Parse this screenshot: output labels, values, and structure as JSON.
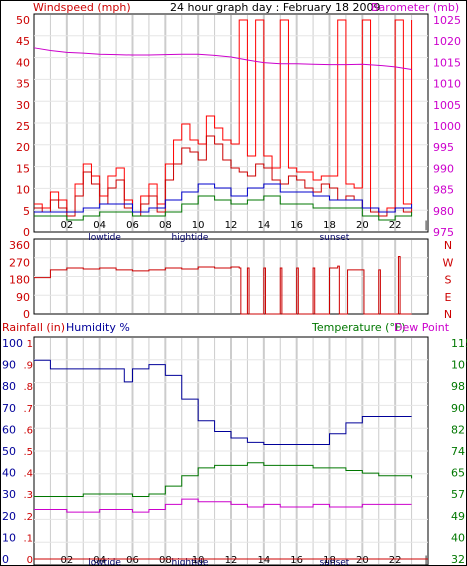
{
  "title": "24 hour graph day : February 18 2009",
  "colors": {
    "wind": "#cc0000",
    "gust": "#ff0000",
    "avg_wind": "#0000cc",
    "barometer": "#cc00cc",
    "direction": "#cc0000",
    "rain": "#cc0000",
    "humidity": "#000099",
    "temperature": "#007700",
    "dewpoint": "#cc00cc",
    "grid": "#cccccc",
    "frame": "#000000"
  },
  "panels": {
    "wind": {
      "left_label": "Windspeed (mph)",
      "right_label": "Barometer (mb)",
      "left_ticks": [
        "50",
        "45",
        "40",
        "35",
        "30",
        "25",
        "20",
        "15",
        "10",
        "5",
        "0"
      ],
      "right_ticks": [
        "1025",
        "1020",
        "1015",
        "1010",
        "1005",
        "1000",
        "995",
        "990",
        "985",
        "980",
        "975"
      ]
    },
    "direction": {
      "left_ticks": [
        "360",
        "270",
        "180",
        "90",
        "0"
      ],
      "right_ticks": [
        "N",
        "W",
        "S",
        "E",
        "N"
      ]
    },
    "temp": {
      "left_label_rain": "Rainfall (in)",
      "left_label_humidity": "Humidity %",
      "right_label_temp": "Temperature (°F)",
      "right_label_dew": "Dew Point",
      "rain_ticks": [
        "1",
        ".9",
        ".8",
        ".7",
        ".6",
        ".5",
        ".4",
        ".3",
        ".2",
        ".1",
        "0"
      ],
      "humidity_ticks": [
        "100",
        "90",
        "80",
        "70",
        "60",
        "50",
        "40",
        "30",
        "20",
        "10",
        "0"
      ],
      "right_ticks": [
        "115",
        "107",
        "98",
        "90",
        "82",
        "74",
        "65",
        "57",
        "49",
        "40",
        "32"
      ]
    }
  },
  "x_axis": {
    "hour_labels": [
      "02",
      "04",
      "06",
      "08",
      "10",
      "12",
      "14",
      "16",
      "18",
      "20",
      "22"
    ],
    "end_label": "|",
    "event_labels": [
      {
        "text": "lowtide",
        "hour": 4.3
      },
      {
        "text": "hightide",
        "hour": 9.5
      },
      {
        "text": "sunset",
        "hour": 18.3
      }
    ]
  },
  "chart_data": [
    {
      "type": "line",
      "title": "24 hour graph day : February 18 2009",
      "xlabel": "",
      "ylabel": "Windspeed (mph)",
      "y2label": "Barometer (mb)",
      "xlim": [
        0,
        24
      ],
      "ylim": [
        0,
        50
      ],
      "y2lim": [
        975,
        1027.5
      ],
      "grid": true,
      "series": [
        {
          "name": "Windspeed (mph)",
          "axis": "left",
          "x": [
            0,
            0.5,
            1,
            1.5,
            2,
            2.5,
            3,
            3.5,
            4,
            4.5,
            5,
            5.5,
            6,
            6.5,
            7,
            7.5,
            8,
            8.5,
            9,
            9.5,
            10,
            10.5,
            11,
            11.5,
            12,
            12.5,
            13,
            13.5,
            14,
            14.5,
            15,
            15.5,
            16,
            16.5,
            17,
            17.5,
            18,
            18.5,
            19,
            19.5,
            20,
            20.5,
            21,
            21.5,
            22,
            22.5,
            23
          ],
          "values": [
            3,
            2,
            5,
            3,
            1,
            6,
            12,
            9,
            4,
            8,
            10,
            3,
            1,
            4,
            6,
            2,
            10,
            14,
            18,
            17,
            15,
            21,
            19,
            15,
            13,
            12,
            11,
            14,
            13,
            10,
            9,
            11,
            10,
            8,
            7,
            9,
            8,
            5,
            6,
            5,
            3,
            2,
            1,
            2,
            3,
            2,
            3
          ]
        },
        {
          "name": "Gust",
          "axis": "left",
          "x": [
            0,
            0.5,
            1,
            1.5,
            2,
            2.5,
            3,
            3.5,
            4,
            4.5,
            5,
            5.5,
            6,
            6.5,
            7,
            7.5,
            8,
            8.5,
            9,
            9.5,
            10,
            10.5,
            11,
            11.5,
            12,
            12.5,
            13,
            13.5,
            14,
            14.5,
            15,
            15.5,
            16,
            16.5,
            17,
            17.5,
            18,
            18.5,
            19,
            19.5,
            20,
            20.5,
            21,
            21.5,
            22,
            22.5,
            23
          ],
          "values": [
            4,
            3,
            7,
            5,
            2,
            9,
            14,
            11,
            6,
            11,
            13,
            5,
            2,
            6,
            9,
            4,
            14,
            20,
            24,
            20,
            19,
            26,
            23,
            20,
            19,
            50,
            16,
            50,
            16,
            13,
            50,
            13,
            12,
            12,
            10,
            11,
            11,
            50,
            9,
            8,
            50,
            3,
            2,
            3,
            50,
            4,
            50
          ]
        },
        {
          "name": "Average wind",
          "axis": "left",
          "x": [
            0,
            1,
            2,
            3,
            4,
            5,
            6,
            7,
            8,
            9,
            10,
            11,
            12,
            13,
            14,
            15,
            16,
            17,
            18,
            19,
            20,
            21,
            22,
            23
          ],
          "values": [
            2,
            2,
            2,
            3,
            4,
            4,
            2,
            3,
            5,
            7,
            9,
            8,
            6,
            8,
            9,
            7,
            7,
            6,
            5,
            5,
            3,
            2,
            3,
            4
          ]
        },
        {
          "name": "Direction-steady wind",
          "axis": "left",
          "x": [
            0,
            1,
            2,
            3,
            4,
            5,
            6,
            7,
            8,
            9,
            10,
            11,
            12,
            13,
            14,
            15,
            16,
            17,
            18,
            19,
            20,
            21,
            22,
            23
          ],
          "values": [
            1,
            1,
            0,
            1,
            2,
            2,
            1,
            1,
            2,
            4,
            6,
            5,
            4,
            5,
            6,
            4,
            4,
            3,
            3,
            3,
            1,
            0,
            1,
            2
          ]
        },
        {
          "name": "Barometer (mb)",
          "axis": "right",
          "x": [
            0,
            1,
            2,
            3,
            4,
            5,
            6,
            7,
            8,
            9,
            10,
            11,
            12,
            13,
            14,
            15,
            16,
            17,
            18,
            19,
            20,
            21,
            22,
            23
          ],
          "values": [
            1020.2,
            1019.5,
            1019,
            1018.8,
            1018.5,
            1018.4,
            1018.3,
            1018.3,
            1018.4,
            1018.5,
            1018.5,
            1018.2,
            1017.8,
            1017,
            1016.3,
            1016,
            1016,
            1015.9,
            1015.8,
            1015.8,
            1015.9,
            1015.6,
            1015.2,
            1014.5
          ]
        }
      ]
    },
    {
      "type": "line",
      "xlabel": "",
      "ylabel": "",
      "xlim": [
        0,
        24
      ],
      "ylim": [
        0,
        360
      ],
      "grid": true,
      "series": [
        {
          "name": "Wind direction",
          "x": [
            0,
            1,
            2,
            3,
            4,
            5,
            6,
            7,
            8,
            9,
            10,
            11,
            12,
            12.5,
            12.6,
            13,
            13.1,
            14,
            14.1,
            15,
            15.1,
            16,
            16.1,
            17,
            17.1,
            18,
            18.5,
            18.6,
            19,
            19.1,
            20,
            20.1,
            21,
            21.1,
            22,
            22.2,
            22.3,
            23
          ],
          "values": [
            190,
            230,
            240,
            235,
            240,
            230,
            225,
            230,
            240,
            235,
            245,
            240,
            245,
            240,
            0,
            240,
            0,
            240,
            0,
            240,
            0,
            240,
            0,
            240,
            0,
            240,
            250,
            0,
            0,
            230,
            230,
            0,
            230,
            0,
            0,
            300,
            0,
            0
          ]
        }
      ]
    },
    {
      "type": "line",
      "xlabel": "",
      "ylabel": "Humidity %",
      "y2label": "Temperature (°F)",
      "xlim": [
        0,
        24
      ],
      "ylim": [
        0,
        100
      ],
      "y2lim": [
        32,
        115
      ],
      "grid": true,
      "series": [
        {
          "name": "Humidity %",
          "axis": "left",
          "x": [
            0,
            1,
            2,
            3,
            4,
            5,
            5.5,
            6,
            7,
            8,
            9,
            10,
            11,
            12,
            13,
            14,
            15,
            16,
            17,
            18,
            19,
            20,
            21,
            22,
            23
          ],
          "values": [
            92,
            88,
            88,
            88,
            88,
            88,
            82,
            88,
            90,
            85,
            74,
            64,
            59,
            56,
            54,
            53,
            53,
            53,
            53,
            58,
            63,
            66,
            66,
            66,
            66
          ]
        },
        {
          "name": "Temperature (°F)",
          "axis": "right",
          "x": [
            0,
            1,
            2,
            3,
            4,
            5,
            6,
            7,
            8,
            9,
            10,
            11,
            12,
            13,
            14,
            15,
            16,
            17,
            18,
            19,
            20,
            21,
            22,
            23
          ],
          "values": [
            56,
            56,
            56,
            57,
            57,
            57,
            56,
            57,
            60,
            64,
            67,
            68,
            68,
            69,
            68,
            68,
            68,
            67,
            67,
            66,
            65,
            64,
            64,
            63
          ]
        },
        {
          "name": "Dew Point",
          "axis": "right",
          "x": [
            0,
            1,
            2,
            3,
            4,
            5,
            6,
            7,
            8,
            9,
            10,
            11,
            12,
            13,
            14,
            15,
            16,
            17,
            18,
            19,
            20,
            21,
            22,
            23
          ],
          "values": [
            51,
            51,
            50,
            50,
            51,
            51,
            50,
            51,
            53,
            55,
            54,
            54,
            53,
            52,
            53,
            52,
            52,
            53,
            52,
            52,
            53,
            53,
            53,
            53
          ]
        },
        {
          "name": "Rainfall (in)",
          "axis": "left",
          "x": [
            0,
            24
          ],
          "values": [
            0,
            0
          ]
        }
      ]
    }
  ]
}
